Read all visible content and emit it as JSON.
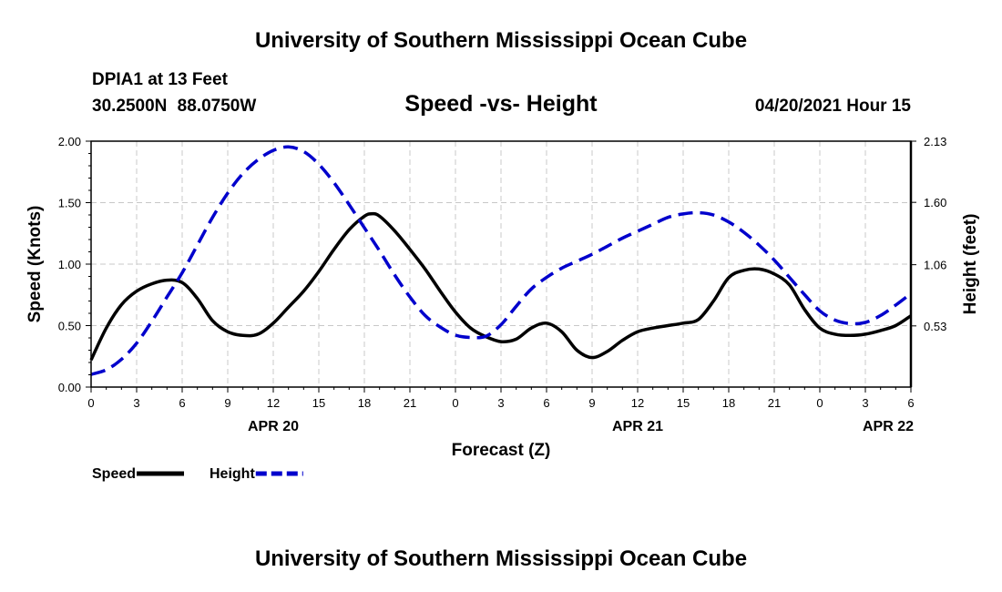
{
  "header": {
    "title": "University of Southern Mississippi Ocean Cube",
    "station": "DPIA1 at 13 Feet",
    "coords": "30.2500N  88.0750W",
    "chart_title": "Speed -vs- Height",
    "valid_time": "04/20/2021 Hour 15"
  },
  "footer": {
    "title": "University of Southern Mississippi Ocean Cube"
  },
  "chart_data": {
    "type": "line",
    "title": "Speed -vs- Height",
    "xlabel": "Forecast (Z)",
    "ylabel": "Speed (Knots)",
    "y2label": "Height (feet)",
    "xlim": [
      0,
      54
    ],
    "ylim": [
      0,
      2
    ],
    "y2lim": [
      0,
      2.13
    ],
    "grid": true,
    "x_ticks": [
      0,
      3,
      6,
      9,
      12,
      15,
      18,
      21,
      24,
      27,
      30,
      33,
      36,
      39,
      42,
      45,
      48,
      51,
      54
    ],
    "x_tick_labels": [
      "0",
      "3",
      "6",
      "9",
      "12",
      "15",
      "18",
      "21",
      "0",
      "3",
      "6",
      "9",
      "12",
      "15",
      "18",
      "21",
      "0",
      "3",
      "6"
    ],
    "date_labels": [
      {
        "x": 12,
        "label": "APR 20"
      },
      {
        "x": 36,
        "label": "APR 21"
      },
      {
        "x": 52.5,
        "label": "APR 22"
      }
    ],
    "y_ticks": [
      0,
      0.5,
      1.0,
      1.5,
      2.0
    ],
    "y_tick_labels": [
      "0.00",
      "0.50",
      "1.00",
      "1.50",
      "2.00"
    ],
    "y2_ticks": [
      0.53,
      1.06,
      1.6,
      2.13
    ],
    "y2_tick_labels": [
      "0.53",
      "1.06",
      "1.60",
      "2.13"
    ],
    "legend": [
      {
        "name": "Speed",
        "color": "#000000",
        "style": "solid"
      },
      {
        "name": "Height",
        "color": "#0000cc",
        "style": "dashed"
      }
    ],
    "series": [
      {
        "name": "Speed",
        "axis": "left",
        "color": "#000000",
        "style": "solid",
        "x": [
          0,
          1,
          2,
          3,
          4,
          5,
          6,
          7,
          8,
          9,
          10,
          11,
          12,
          13,
          14,
          15,
          16,
          17,
          18,
          18.5,
          19,
          20,
          21,
          22,
          23,
          24,
          25,
          26,
          27,
          28,
          29,
          30,
          31,
          32,
          33,
          34,
          35,
          36,
          37,
          38,
          39,
          40,
          41,
          42,
          43,
          44,
          45,
          46,
          47,
          48,
          49,
          50,
          51,
          52,
          53,
          54
        ],
        "values": [
          0.22,
          0.48,
          0.67,
          0.78,
          0.84,
          0.87,
          0.85,
          0.72,
          0.54,
          0.45,
          0.42,
          0.43,
          0.52,
          0.65,
          0.78,
          0.94,
          1.12,
          1.28,
          1.39,
          1.41,
          1.39,
          1.27,
          1.12,
          0.96,
          0.78,
          0.61,
          0.48,
          0.41,
          0.37,
          0.39,
          0.48,
          0.52,
          0.45,
          0.3,
          0.24,
          0.29,
          0.38,
          0.45,
          0.48,
          0.5,
          0.52,
          0.55,
          0.7,
          0.89,
          0.95,
          0.96,
          0.92,
          0.83,
          0.63,
          0.48,
          0.43,
          0.42,
          0.43,
          0.46,
          0.5,
          0.58
        ]
      },
      {
        "name": "Height",
        "axis": "right",
        "color": "#0000cc",
        "style": "dashed",
        "x": [
          0,
          1,
          2,
          3,
          4,
          5,
          6,
          7,
          8,
          9,
          10,
          11,
          12,
          13,
          14,
          15,
          16,
          17,
          18,
          19,
          20,
          21,
          22,
          23,
          24,
          25,
          26,
          27,
          28,
          29,
          30,
          31,
          32,
          33,
          34,
          35,
          36,
          37,
          38,
          39,
          40,
          41,
          42,
          43,
          44,
          45,
          46,
          47,
          48,
          49,
          50,
          51,
          52,
          53,
          54
        ],
        "values": [
          0.11,
          0.15,
          0.24,
          0.38,
          0.57,
          0.78,
          0.99,
          1.23,
          1.47,
          1.68,
          1.85,
          1.97,
          2.05,
          2.08,
          2.04,
          1.93,
          1.77,
          1.58,
          1.38,
          1.18,
          0.97,
          0.78,
          0.62,
          0.52,
          0.45,
          0.43,
          0.44,
          0.54,
          0.7,
          0.85,
          0.95,
          1.03,
          1.09,
          1.15,
          1.22,
          1.29,
          1.35,
          1.41,
          1.47,
          1.5,
          1.51,
          1.49,
          1.43,
          1.34,
          1.23,
          1.1,
          0.95,
          0.8,
          0.66,
          0.58,
          0.55,
          0.56,
          0.62,
          0.71,
          0.81
        ]
      }
    ]
  }
}
